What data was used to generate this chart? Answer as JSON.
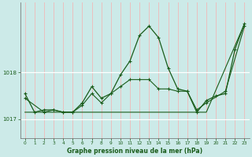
{
  "title": "Graphe pression niveau de la mer (hPa)",
  "background_color": "#cceae8",
  "grid_color_v": "#f0b8b8",
  "grid_color_h": "#ffffff",
  "line_color": "#1a5c1a",
  "ylim": [
    1016.6,
    1019.5
  ],
  "xlim": [
    -0.5,
    23.5
  ],
  "yticks": [
    1017,
    1018
  ],
  "xticks": [
    0,
    1,
    2,
    3,
    4,
    5,
    6,
    7,
    8,
    9,
    10,
    11,
    12,
    13,
    14,
    15,
    16,
    17,
    18,
    19,
    20,
    21,
    22,
    23
  ],
  "series1_x": [
    0,
    1,
    2,
    3,
    4,
    5,
    6,
    7,
    8,
    9,
    10,
    11,
    12,
    13,
    14,
    15,
    16,
    17,
    18,
    19,
    20,
    21,
    22,
    23
  ],
  "series1_y": [
    1017.55,
    1017.15,
    1017.2,
    1017.2,
    1017.15,
    1017.15,
    1017.35,
    1017.7,
    1017.45,
    1017.55,
    1017.95,
    1018.25,
    1018.8,
    1019.0,
    1018.75,
    1018.1,
    1017.65,
    1017.6,
    1017.15,
    1017.4,
    1017.5,
    1017.55,
    1018.5,
    1019.05
  ],
  "series2_x": [
    0,
    2,
    3,
    4,
    5,
    6,
    7,
    8,
    9,
    10,
    11,
    12,
    13,
    14,
    15,
    16,
    17,
    18,
    19,
    21,
    23
  ],
  "series2_y": [
    1017.45,
    1017.15,
    1017.2,
    1017.15,
    1017.15,
    1017.3,
    1017.55,
    1017.35,
    1017.55,
    1017.7,
    1017.85,
    1017.85,
    1017.85,
    1017.65,
    1017.65,
    1017.6,
    1017.6,
    1017.2,
    1017.35,
    1017.6,
    1019.0
  ],
  "series3_x": [
    0,
    4,
    19,
    23
  ],
  "series3_y": [
    1017.15,
    1017.15,
    1017.15,
    1019.05
  ]
}
